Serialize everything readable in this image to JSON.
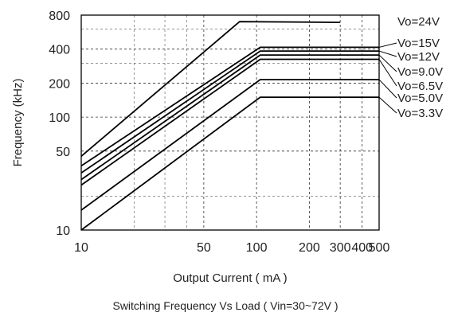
{
  "chart_data": {
    "type": "line",
    "title": "Switching Frequency  Vs Load ( Vin=30~72V )",
    "xlabel": "Output Current ( mA )",
    "ylabel": "Frequency (kHz)",
    "x_scale": "log",
    "y_scale": "log",
    "xlim": [
      10,
      500
    ],
    "ylim": [
      10,
      800
    ],
    "x_ticks": [
      10,
      50,
      100,
      200,
      300,
      400,
      500
    ],
    "x_tick_labels": [
      "10",
      "50",
      "100",
      "200",
      "300",
      "400",
      "500"
    ],
    "y_ticks": [
      10,
      50,
      100,
      200,
      400,
      800
    ],
    "y_tick_labels": [
      "10",
      "50",
      "100",
      "200",
      "400",
      "800"
    ],
    "grid": true,
    "legend": "right",
    "series": [
      {
        "name": "Vo=24V",
        "points": [
          [
            10,
            45
          ],
          [
            80,
            700
          ],
          [
            300,
            690
          ]
        ]
      },
      {
        "name": "Vo=15V",
        "points": [
          [
            10,
            37
          ],
          [
            105,
            415
          ],
          [
            500,
            415
          ]
        ]
      },
      {
        "name": "Vo=12V",
        "points": [
          [
            10,
            32
          ],
          [
            105,
            385
          ],
          [
            500,
            385
          ]
        ]
      },
      {
        "name": "Vo=9.0V",
        "points": [
          [
            10,
            28
          ],
          [
            105,
            355
          ],
          [
            500,
            355
          ]
        ]
      },
      {
        "name": "Vo=6.5V",
        "points": [
          [
            10,
            25
          ],
          [
            105,
            325
          ],
          [
            500,
            325
          ]
        ]
      },
      {
        "name": "Vo=5.0V",
        "points": [
          [
            10,
            15
          ],
          [
            105,
            215
          ],
          [
            500,
            215
          ]
        ]
      },
      {
        "name": "Vo=3.3V",
        "points": [
          [
            10,
            10
          ],
          [
            105,
            150
          ],
          [
            500,
            150
          ]
        ]
      }
    ]
  }
}
